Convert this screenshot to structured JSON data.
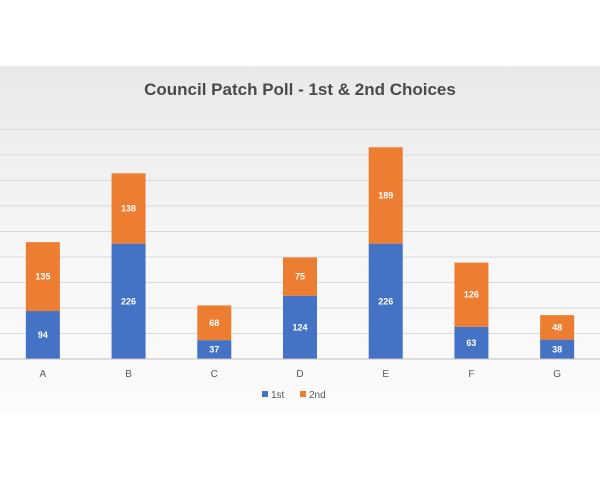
{
  "chart_data": {
    "type": "bar",
    "stacked": true,
    "title": "Council Patch Poll - 1st & 2nd Choices",
    "xlabel": "",
    "ylabel": "",
    "categories": [
      "A",
      "B",
      "C",
      "D",
      "E",
      "F",
      "G"
    ],
    "series": [
      {
        "name": "1st",
        "values": [
          94,
          226,
          37,
          124,
          226,
          63,
          38
        ],
        "color": "#4472c4"
      },
      {
        "name": "2nd",
        "values": [
          135,
          138,
          68,
          75,
          189,
          126,
          48
        ],
        "color": "#ed7d31"
      }
    ],
    "ylim": [
      0,
      450
    ],
    "grid": true,
    "legend_position": "bottom"
  }
}
